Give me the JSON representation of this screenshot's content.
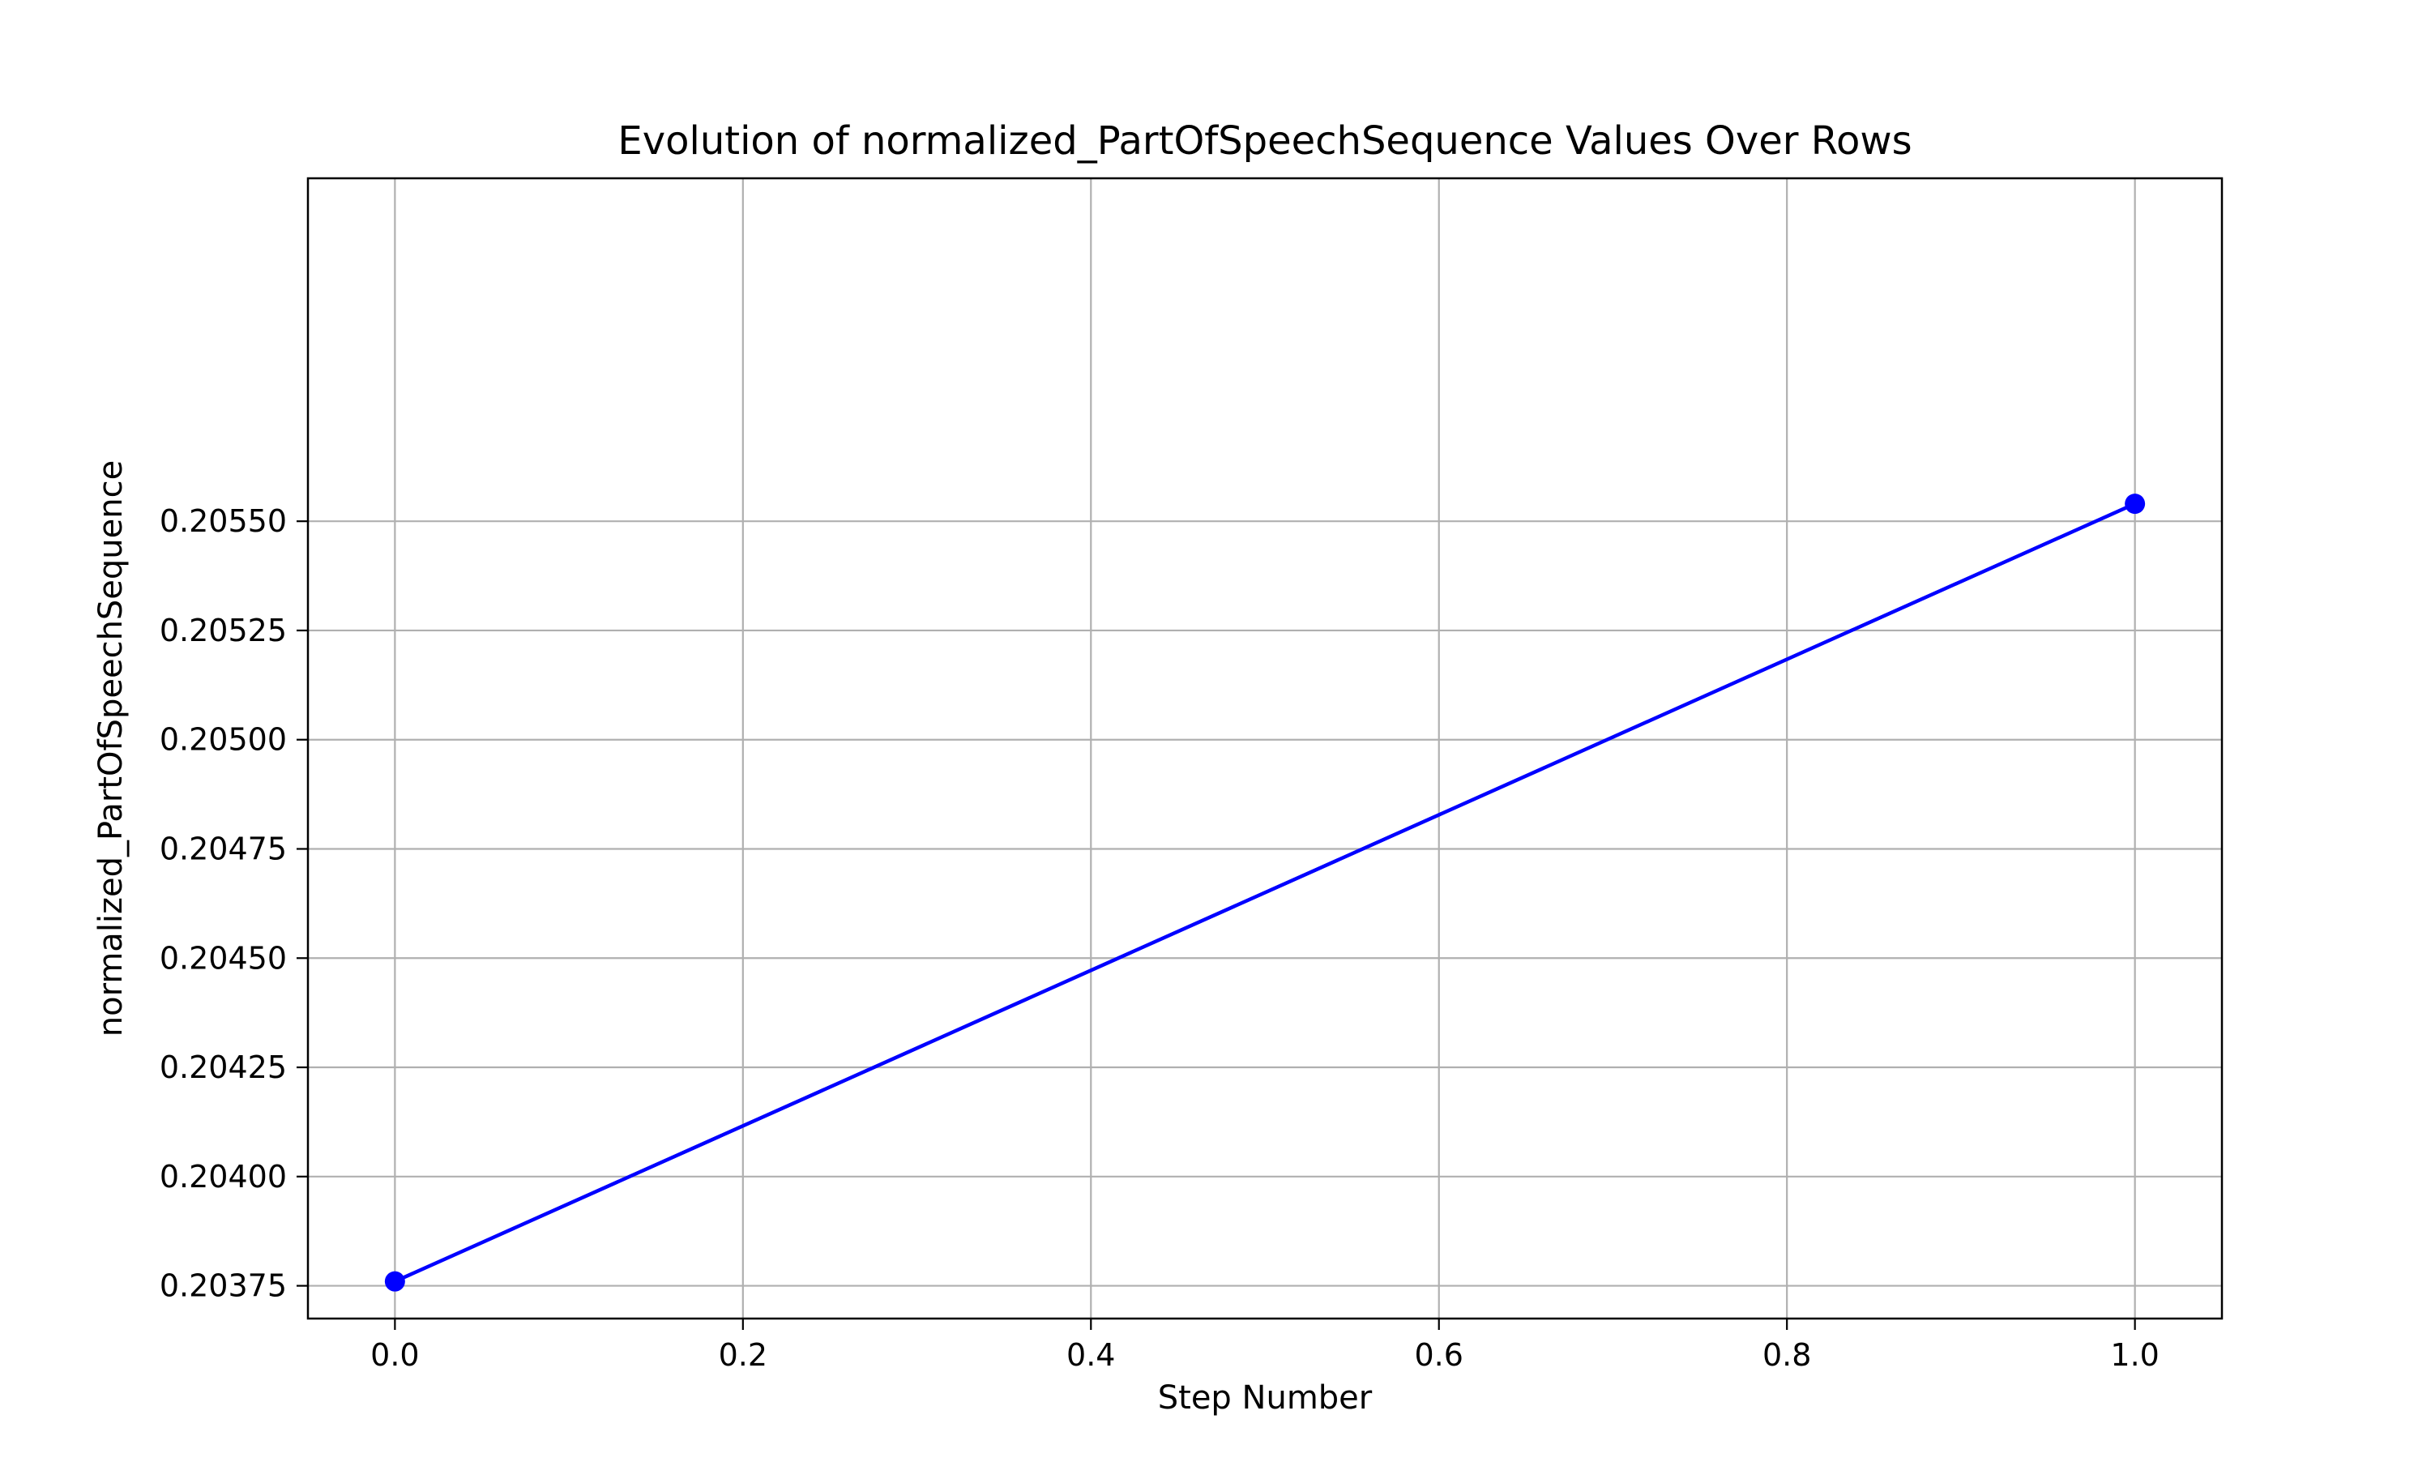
{
  "chart_data": {
    "type": "line",
    "title": "Evolution of normalized_PartOfSpeechSequence Values Over Rows",
    "xlabel": "Step Number",
    "ylabel": "normalized_PartOfSpeechSequence",
    "x": [
      0.0,
      1.0
    ],
    "series": [
      {
        "values": [
          0.20376,
          0.20554
        ],
        "color": "#0000ff",
        "marker": "circle"
      }
    ],
    "xlim": [
      -0.05,
      1.05
    ],
    "ylim": [
      0.203675,
      0.206285
    ],
    "xticks": [
      0.0,
      0.2,
      0.4,
      0.6,
      0.8,
      1.0
    ],
    "xtick_labels": [
      "0.0",
      "0.2",
      "0.4",
      "0.6",
      "0.8",
      "1.0"
    ],
    "yticks": [
      0.20375,
      0.204,
      0.20425,
      0.2045,
      0.20475,
      0.205,
      0.20525,
      0.2055
    ],
    "ytick_labels": [
      "0.20375",
      "0.20400",
      "0.20425",
      "0.20450",
      "0.20475",
      "0.20500",
      "0.20525",
      "0.20550"
    ],
    "grid": true,
    "grid_color": "#b0b0b0",
    "legend": null
  }
}
